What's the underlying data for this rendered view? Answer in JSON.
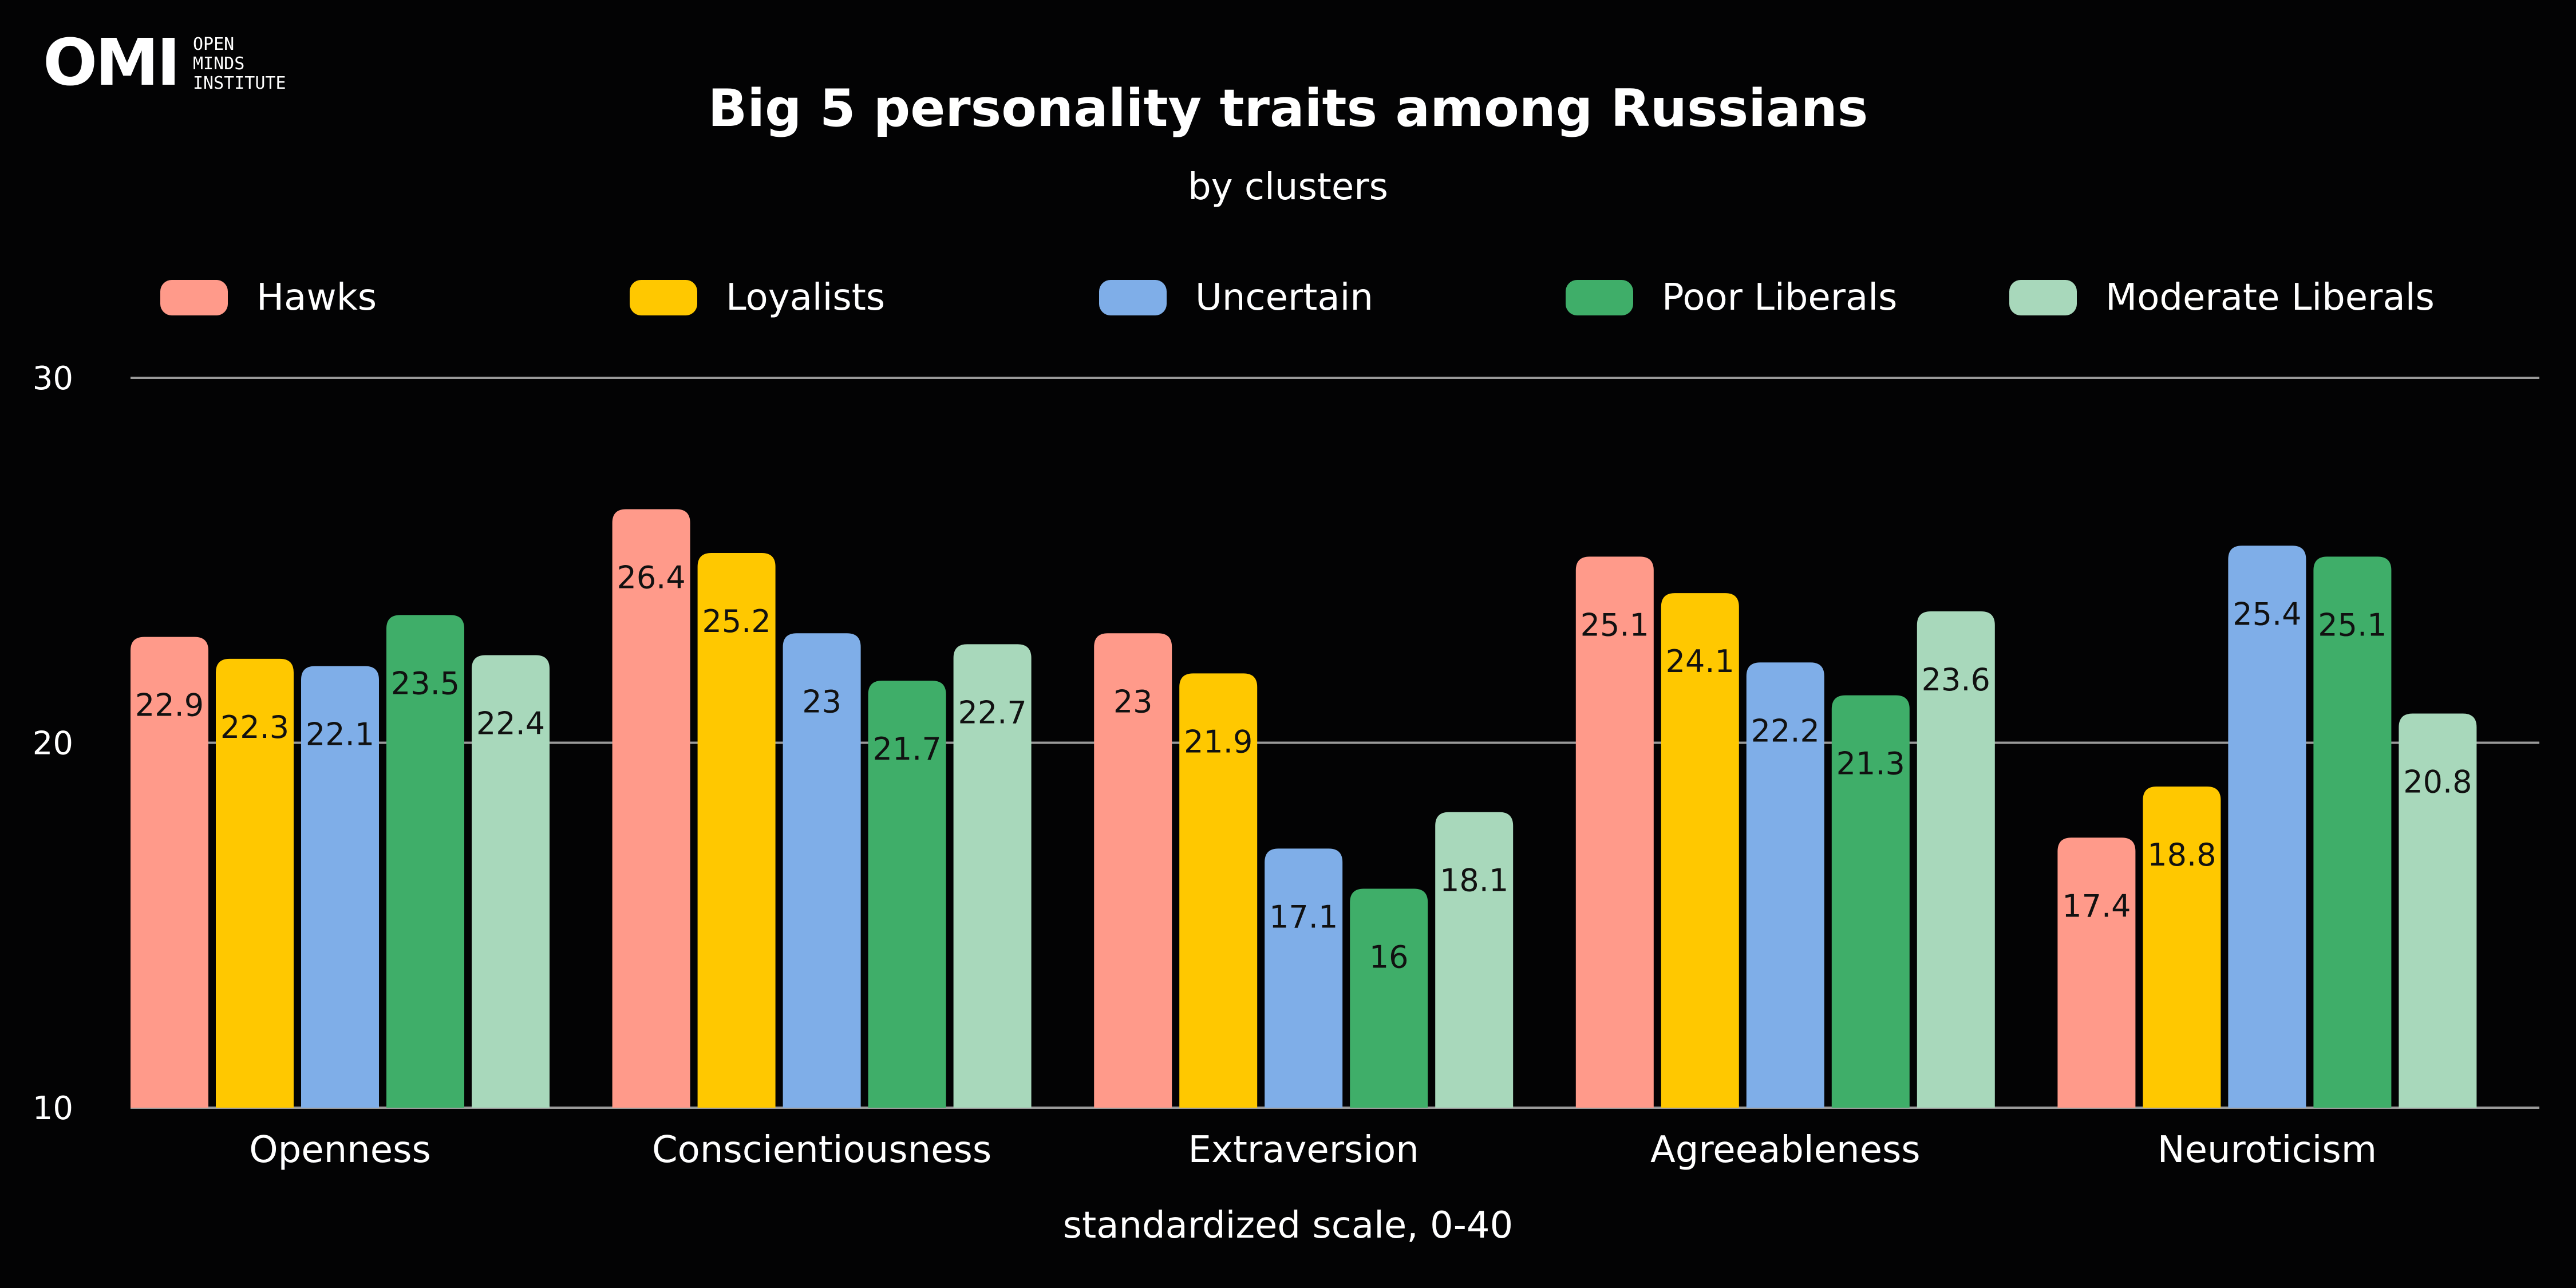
{
  "logo": {
    "mark": "OMI",
    "text": "OPEN\nMINDS\nINSTITUTE"
  },
  "chart_data": {
    "type": "bar",
    "title": "Big 5 personality traits among Russians",
    "subtitle": "by clusters",
    "xlabel": "standardized scale, 0-40",
    "ylabel": "",
    "ylim": [
      10,
      30
    ],
    "yticks": [
      10,
      20,
      30
    ],
    "grid": true,
    "legend_position": "top",
    "categories": [
      "Openness",
      "Conscientiousness",
      "Extraversion",
      "Agreeableness",
      "Neuroticism"
    ],
    "series": [
      {
        "name": "Hawks",
        "color": "#ff9a8a",
        "values": [
          22.9,
          26.4,
          23,
          25.1,
          17.4
        ]
      },
      {
        "name": "Loyalists",
        "color": "#ffc800",
        "values": [
          22.3,
          25.2,
          21.9,
          24.1,
          18.8
        ]
      },
      {
        "name": "Uncertain",
        "color": "#7faee8",
        "values": [
          22.1,
          23,
          17.1,
          22.2,
          25.4
        ]
      },
      {
        "name": "Poor Liberals",
        "color": "#3fae69",
        "values": [
          23.5,
          21.7,
          16,
          21.3,
          25.1
        ]
      },
      {
        "name": "Moderate Liberals",
        "color": "#a8d8bb",
        "values": [
          22.4,
          22.7,
          18.1,
          23.6,
          20.8
        ]
      }
    ]
  }
}
